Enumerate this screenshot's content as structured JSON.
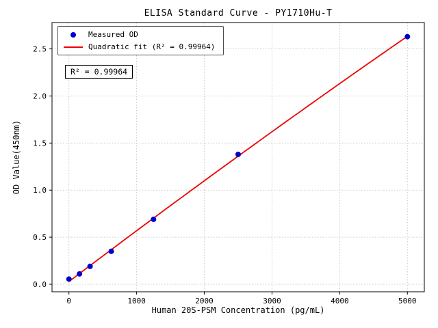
{
  "chart_data": {
    "type": "scatter",
    "title": "ELISA Standard Curve - PY1710Hu-T",
    "xlabel": "Human 20S-PSM Concentration (pg/mL)",
    "ylabel": "OD Value(450nm)",
    "x_ticks": [
      0,
      1000,
      2000,
      3000,
      4000,
      5000
    ],
    "y_ticks": [
      0.0,
      0.5,
      1.0,
      1.5,
      2.0,
      2.5
    ],
    "xlim": [
      -250,
      5250
    ],
    "ylim": [
      -0.08,
      2.78
    ],
    "grid": true,
    "grid_style": "dotted",
    "legend_position": "upper-left",
    "series": [
      {
        "name": "Measured OD",
        "type": "scatter",
        "color": "#0000cd",
        "x": [
          0,
          156,
          312,
          625,
          1250,
          2500,
          5000
        ],
        "y": [
          0.055,
          0.11,
          0.19,
          0.35,
          0.69,
          1.38,
          2.63
        ]
      },
      {
        "name": "Quadratic fit (R² = 0.99964)",
        "type": "quadratic-fit",
        "color": "#ee0000"
      }
    ],
    "annotation": "R² = 0.99964",
    "r_squared": 0.99964,
    "axis_color": "#000000",
    "grid_color": "#bdbdbd"
  }
}
